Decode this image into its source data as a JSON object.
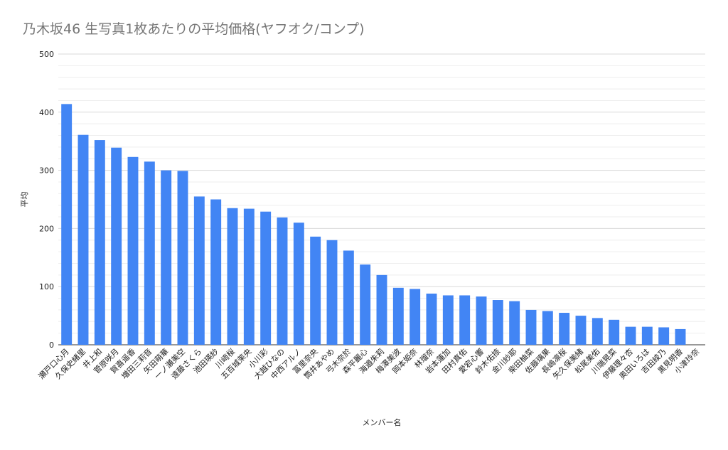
{
  "chart_data": {
    "type": "bar",
    "title": "乃木坂46 生写真1枚あたりの平均価格(ヤフオク/コンプ)",
    "xlabel": "メンバー名",
    "ylabel": "平均",
    "ylim": [
      0,
      500
    ],
    "yticks": [
      0,
      100,
      200,
      300,
      400,
      500
    ],
    "grid": true,
    "minor_grid": true,
    "bar_color": "#4285f4",
    "gridline_color": "#e0e0e0",
    "categories": [
      "瀬戸口心月",
      "久保史緒里",
      "井上和",
      "菅原咲月",
      "賀喜遥香",
      "増田三莉音",
      "矢田萌華",
      "一ノ瀬美空",
      "遠藤さくら",
      "池田瑛紗",
      "川﨑桜",
      "五百城茉央",
      "小川彩",
      "大越ひなの",
      "中西アルノ",
      "冨里奈央",
      "筒井あやめ",
      "弓木奈於",
      "森平麗心",
      "海邉朱莉",
      "梅澤美波",
      "岡本姫奈",
      "林瑠奈",
      "岩本蓮加",
      "田村真佑",
      "愛宕心響",
      "鈴木佑捺",
      "金川紗耶",
      "柴田柚菜",
      "佐藤璃果",
      "長嶋凛桜",
      "矢久保美緒",
      "松尾美佑",
      "川端晃菜",
      "伊藤理々杏",
      "奥田いろは",
      "吉田綾乃",
      "黒見明香",
      "小津玲奈"
    ],
    "values": [
      414,
      361,
      352,
      339,
      323,
      315,
      300,
      299,
      255,
      250,
      235,
      234,
      229,
      219,
      210,
      186,
      180,
      162,
      138,
      120,
      98,
      96,
      88,
      85,
      85,
      83,
      77,
      75,
      60,
      58,
      55,
      50,
      46,
      43,
      31,
      31,
      30,
      27,
      0
    ]
  }
}
